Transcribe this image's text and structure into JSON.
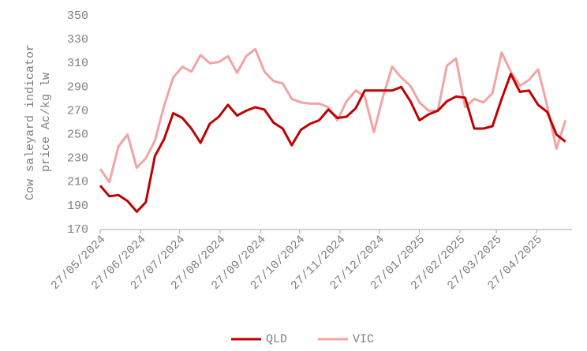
{
  "chart_data": {
    "type": "line",
    "ylabel": [
      "Cow saleyard indicator",
      "price Ac/kg lw"
    ],
    "x": [
      "2024-05-27",
      "2024-06-03",
      "2024-06-10",
      "2024-06-17",
      "2024-06-24",
      "2024-07-01",
      "2024-07-08",
      "2024-07-15",
      "2024-07-22",
      "2024-07-29",
      "2024-08-05",
      "2024-08-12",
      "2024-08-19",
      "2024-08-26",
      "2024-09-02",
      "2024-09-09",
      "2024-09-16",
      "2024-09-23",
      "2024-09-30",
      "2024-10-07",
      "2024-10-14",
      "2024-10-21",
      "2024-10-28",
      "2024-11-04",
      "2024-11-11",
      "2024-11-18",
      "2024-11-25",
      "2024-12-02",
      "2024-12-09",
      "2024-12-16",
      "2024-12-23",
      "2024-12-30",
      "2025-01-06",
      "2025-01-13",
      "2025-01-20",
      "2025-01-27",
      "2025-02-03",
      "2025-02-10",
      "2025-02-17",
      "2025-02-24",
      "2025-03-03",
      "2025-03-10",
      "2025-03-17",
      "2025-03-24",
      "2025-03-31",
      "2025-04-07",
      "2025-04-14",
      "2025-04-21",
      "2025-04-28",
      "2025-05-05",
      "2025-05-12",
      "2025-05-19"
    ],
    "series": [
      {
        "name": "QLD",
        "color": "#c00000",
        "values": [
          207,
          198,
          199,
          194,
          185,
          193,
          232,
          246,
          268,
          264,
          255,
          243,
          259,
          265,
          275,
          266,
          270,
          273,
          271,
          260,
          255,
          241,
          254,
          259,
          262,
          271,
          264,
          265,
          272,
          287,
          287,
          287,
          287,
          290,
          278,
          262,
          267,
          270,
          278,
          282,
          281,
          255,
          255,
          257,
          280,
          301,
          286,
          287,
          275,
          269,
          250,
          244
        ]
      },
      {
        "name": "VIC",
        "color": "#f4a3a3",
        "values": [
          221,
          210,
          240,
          250,
          222,
          230,
          245,
          274,
          298,
          307,
          303,
          317,
          310,
          311,
          316,
          302,
          316,
          322,
          303,
          295,
          293,
          280,
          277,
          276,
          276,
          273,
          262,
          278,
          287,
          282,
          252,
          282,
          307,
          298,
          291,
          277,
          270,
          270,
          308,
          314,
          273,
          280,
          277,
          285,
          319,
          303,
          291,
          296,
          305,
          274,
          238,
          262
        ]
      }
    ],
    "xlim": [
      "2024-05-27",
      "2025-05-24"
    ],
    "xticks": [
      {
        "value": "2024-05-27",
        "label": "27/05/2024"
      },
      {
        "value": "2024-06-27",
        "label": "27/06/2024"
      },
      {
        "value": "2024-07-27",
        "label": "27/07/2024"
      },
      {
        "value": "2024-08-27",
        "label": "27/08/2024"
      },
      {
        "value": "2024-09-27",
        "label": "27/09/2024"
      },
      {
        "value": "2024-10-27",
        "label": "27/10/2024"
      },
      {
        "value": "2024-11-27",
        "label": "27/11/2024"
      },
      {
        "value": "2024-12-27",
        "label": "27/12/2024"
      },
      {
        "value": "2025-01-27",
        "label": "27/01/2025"
      },
      {
        "value": "2025-02-27",
        "label": "27/02/2025"
      },
      {
        "value": "2025-03-27",
        "label": "27/03/2025"
      },
      {
        "value": "2025-04-27",
        "label": "27/04/2025"
      }
    ],
    "ylim": [
      170,
      350
    ],
    "yticks": [
      170,
      190,
      210,
      230,
      250,
      270,
      290,
      310,
      330,
      350
    ],
    "grid": false,
    "legend": "bottom"
  }
}
